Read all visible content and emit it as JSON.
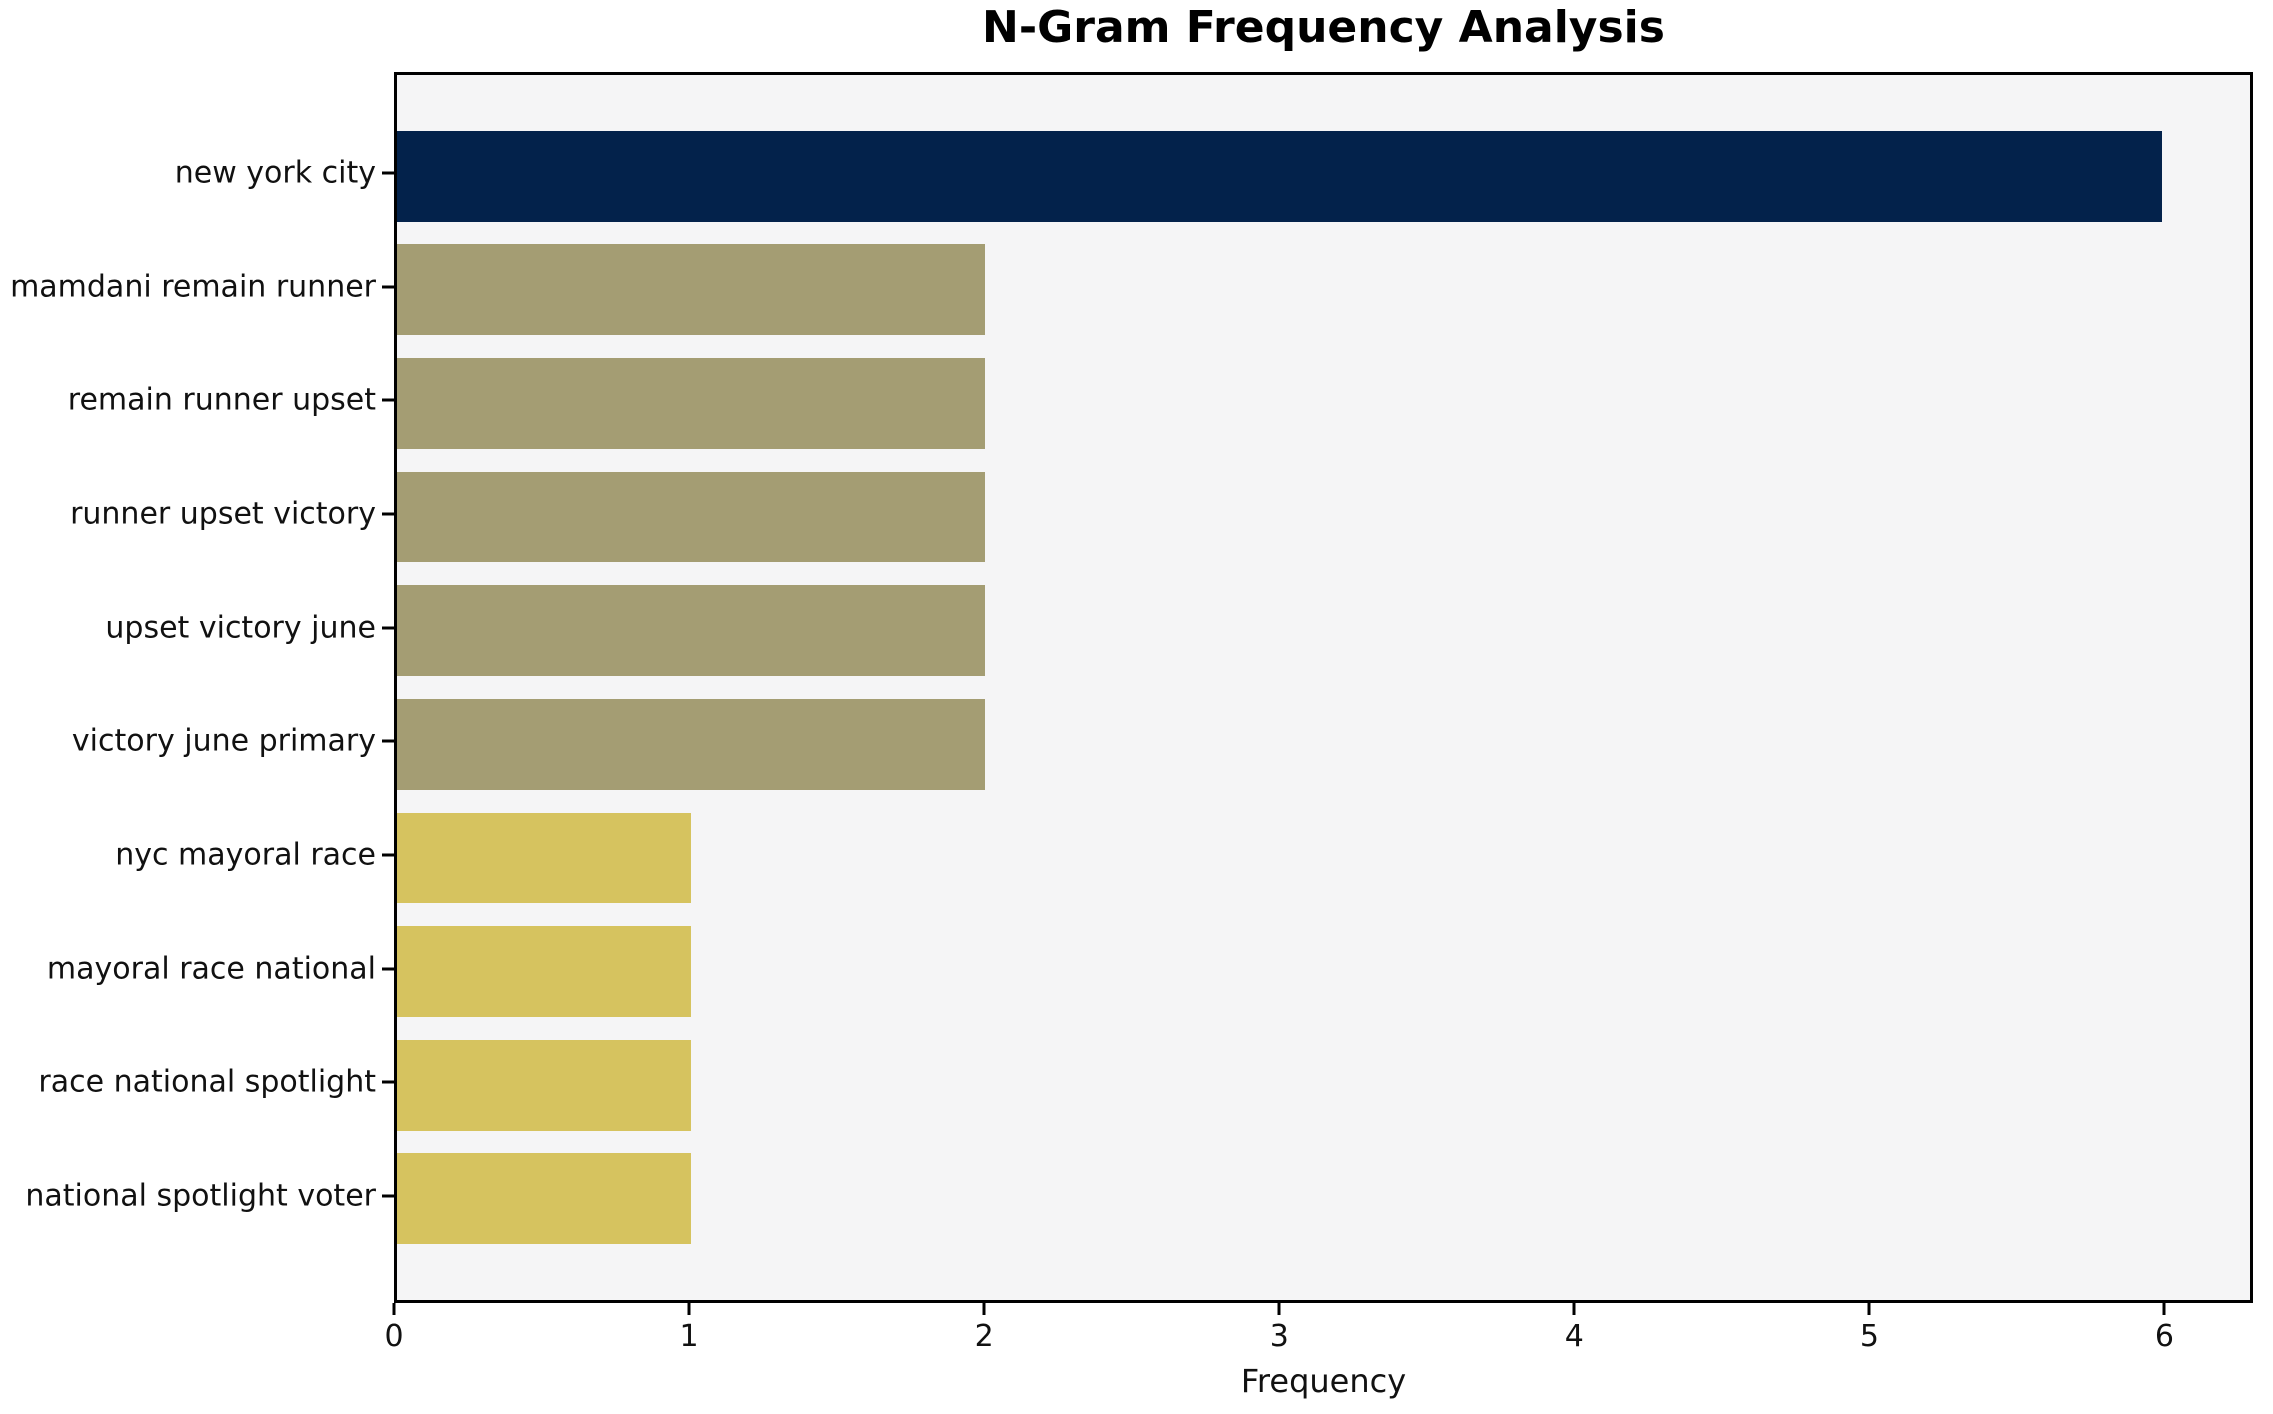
{
  "chart_data": {
    "type": "bar",
    "orientation": "horizontal",
    "title": "N-Gram Frequency Analysis",
    "xlabel": "Frequency",
    "ylabel": "",
    "categories": [
      "new york city",
      "mamdani remain runner",
      "remain runner upset",
      "runner upset victory",
      "upset victory june",
      "victory june primary",
      "nyc mayoral race",
      "mayoral race national",
      "race national spotlight",
      "national spotlight voter"
    ],
    "values": [
      6,
      2,
      2,
      2,
      2,
      2,
      1,
      1,
      1,
      1
    ],
    "bar_colors": [
      "#03224b",
      "#a49d73",
      "#a49d73",
      "#a49d73",
      "#a49d73",
      "#a49d73",
      "#d6c35f",
      "#d6c35f",
      "#d6c35f",
      "#d6c35f"
    ],
    "xticks": [
      0,
      1,
      2,
      3,
      4,
      5,
      6
    ],
    "xlim": [
      0,
      6.3
    ],
    "grid": false,
    "legend": null,
    "plot_background": "#f5f5f6",
    "axis_color": "#000000"
  }
}
